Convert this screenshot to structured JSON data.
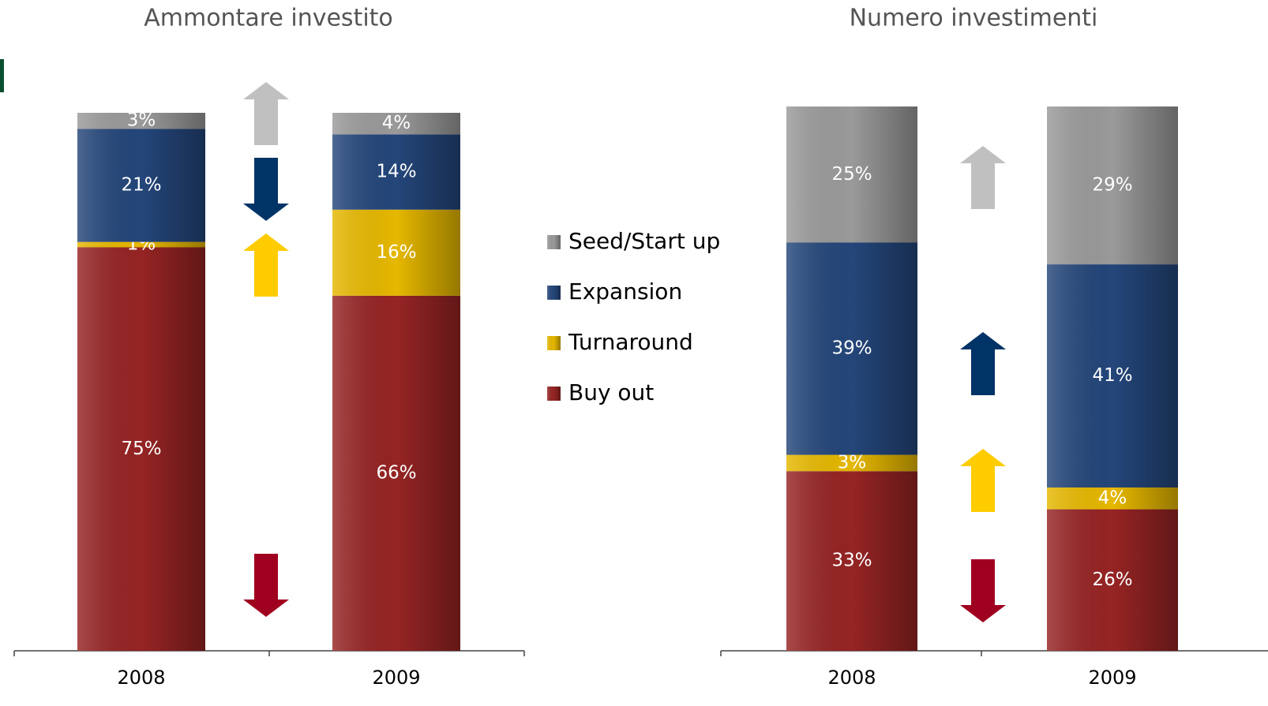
{
  "chart_data": [
    {
      "type": "stacked-bar",
      "title": "Ammontare investito",
      "categories": [
        "2008",
        "2009"
      ],
      "ylim": [
        0,
        100
      ],
      "series": [
        {
          "name": "Seed/Start up",
          "color": "#9a9a9a",
          "values": [
            3,
            4
          ],
          "value_labels": [
            "3%",
            "4%"
          ]
        },
        {
          "name": "Expansion",
          "color": "#24467a",
          "values": [
            21,
            14
          ],
          "value_labels": [
            "21%",
            "14%"
          ]
        },
        {
          "name": "Turnaround",
          "color": "#e6b800",
          "values": [
            1,
            16
          ],
          "value_labels": [
            "1%",
            "16%"
          ]
        },
        {
          "name": "Buy out",
          "color": "#962424",
          "values": [
            75,
            66
          ],
          "value_labels": [
            "75%",
            "66%"
          ]
        }
      ]
    },
    {
      "type": "stacked-bar",
      "title": "Numero investimenti",
      "categories": [
        "2008",
        "2009"
      ],
      "ylim": [
        0,
        100
      ],
      "series": [
        {
          "color": "#9a9a9a",
          "values": [
            25,
            29
          ],
          "value_labels": [
            "25%",
            "29%"
          ]
        },
        {
          "color": "#24467a",
          "values": [
            39,
            41
          ],
          "value_labels": [
            "39%",
            "41%"
          ]
        },
        {
          "color": "#e6b800",
          "values": [
            3,
            4
          ],
          "value_labels": [
            "3%",
            "4%"
          ]
        },
        {
          "color": "#962424",
          "values": [
            33,
            26
          ],
          "value_labels": [
            "33%",
            "26%"
          ]
        }
      ]
    }
  ]
}
